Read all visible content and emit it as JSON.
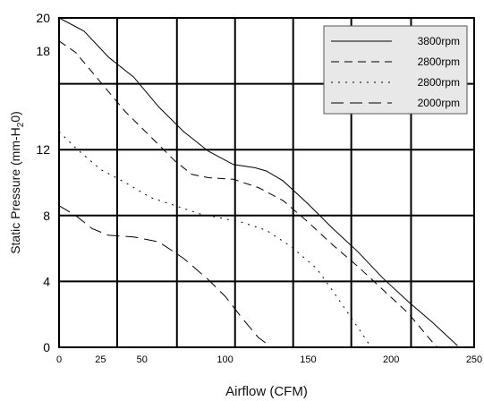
{
  "chart_data": {
    "type": "line",
    "title": "",
    "xlabel": "Airflow (CFM)",
    "ylabel_parts": {
      "main": "Static Pressure (mm-H",
      "sub": "2",
      "tail": "0)"
    },
    "xlim": [
      0,
      250
    ],
    "ylim": [
      0,
      20
    ],
    "x_ticks": [
      0,
      25,
      50,
      100,
      150,
      200,
      250
    ],
    "x_tick_labels": [
      "0",
      "25",
      "50",
      "100",
      "150",
      "200",
      "250"
    ],
    "y_ticks": [
      0,
      4,
      8,
      12,
      18,
      20
    ],
    "y_tick_labels": [
      "0",
      "4",
      "8",
      "12",
      "18",
      "20"
    ],
    "grid_x": [
      0,
      35,
      71,
      106,
      141,
      176,
      212,
      250
    ],
    "grid_y": [
      0,
      4,
      8,
      12,
      16,
      20
    ],
    "grid": true,
    "legend": "top-right",
    "series": [
      {
        "name": "3800rpm",
        "dash": "solid",
        "points": [
          [
            0,
            20
          ],
          [
            15,
            19.2
          ],
          [
            30,
            17.6
          ],
          [
            45,
            16.4
          ],
          [
            60,
            14.6
          ],
          [
            75,
            13.1
          ],
          [
            90,
            11.9
          ],
          [
            105,
            11.1
          ],
          [
            118,
            10.9
          ],
          [
            125,
            10.7
          ],
          [
            135,
            10.1
          ],
          [
            150,
            8.7
          ],
          [
            165,
            7.2
          ],
          [
            180,
            5.8
          ],
          [
            195,
            4.2
          ],
          [
            210,
            2.8
          ],
          [
            225,
            1.5
          ],
          [
            240,
            0.1
          ]
        ]
      },
      {
        "name": "2800rpm",
        "dash": "medium",
        "points": [
          [
            0,
            18.6
          ],
          [
            10,
            17.9
          ],
          [
            25,
            16.1
          ],
          [
            40,
            14.3
          ],
          [
            55,
            12.8
          ],
          [
            70,
            11.3
          ],
          [
            80,
            10.5
          ],
          [
            90,
            10.3
          ],
          [
            105,
            10.2
          ],
          [
            120,
            9.7
          ],
          [
            135,
            8.9
          ],
          [
            150,
            7.6
          ],
          [
            165,
            6.2
          ],
          [
            180,
            4.9
          ],
          [
            195,
            3.5
          ],
          [
            210,
            2.1
          ],
          [
            225,
            0.3
          ],
          [
            228,
            0
          ]
        ]
      },
      {
        "name": "2800rpm",
        "dash": "dotted",
        "points": [
          [
            0,
            13.1
          ],
          [
            10,
            12.1
          ],
          [
            25,
            10.8
          ],
          [
            40,
            10.0
          ],
          [
            55,
            9.1
          ],
          [
            70,
            8.6
          ],
          [
            85,
            8.1
          ],
          [
            100,
            7.8
          ],
          [
            110,
            7.6
          ],
          [
            125,
            7.1
          ],
          [
            140,
            6.1
          ],
          [
            155,
            4.8
          ],
          [
            165,
            3.4
          ],
          [
            180,
            1.2
          ],
          [
            188,
            0
          ]
        ]
      },
      {
        "name": "2000rpm",
        "dash": "long",
        "points": [
          [
            0,
            8.6
          ],
          [
            10,
            8.0
          ],
          [
            20,
            7.2
          ],
          [
            30,
            6.8
          ],
          [
            45,
            6.7
          ],
          [
            60,
            6.4
          ],
          [
            75,
            5.4
          ],
          [
            90,
            4.1
          ],
          [
            100,
            3.1
          ],
          [
            110,
            1.8
          ],
          [
            120,
            0.6
          ],
          [
            128,
            0
          ]
        ]
      }
    ]
  }
}
